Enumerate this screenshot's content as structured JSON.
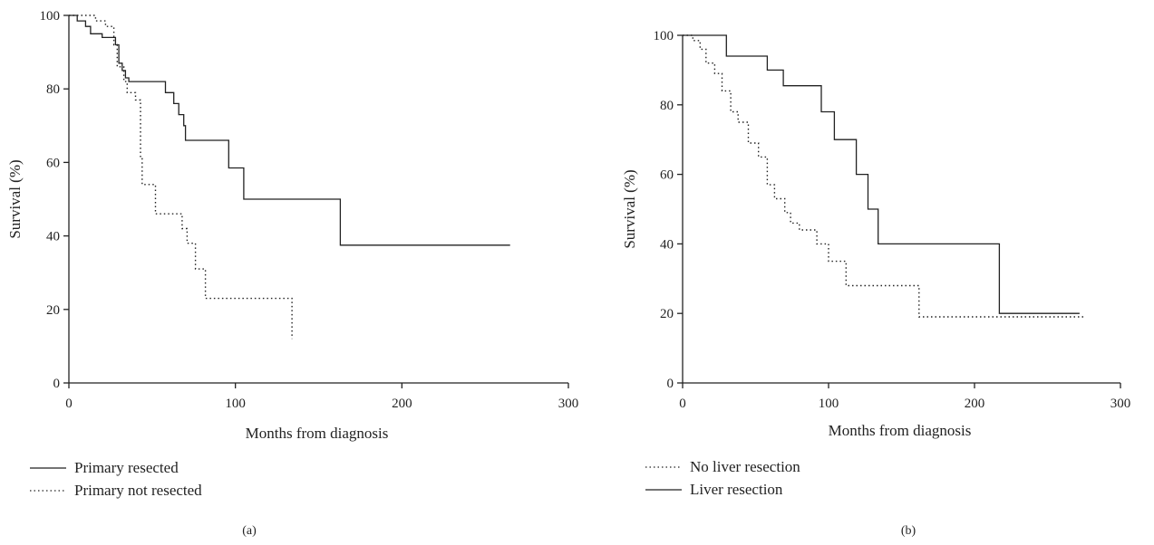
{
  "chart_data": [
    {
      "type": "line",
      "panel_label": "(a)",
      "xlabel": "Months from diagnosis",
      "ylabel": "Survival (%)",
      "xlim": [
        0,
        300
      ],
      "ylim": [
        0,
        100
      ],
      "xticks": [
        0,
        100,
        200,
        300
      ],
      "yticks": [
        0,
        20,
        40,
        60,
        80,
        100
      ],
      "grid": false,
      "legend_position": "bottom-left",
      "series": [
        {
          "name": "Primary resected",
          "style": "solid",
          "points": [
            [
              0,
              100
            ],
            [
              5,
              100
            ],
            [
              5,
              98.5
            ],
            [
              10,
              98.5
            ],
            [
              10,
              97
            ],
            [
              13,
              97
            ],
            [
              13,
              95
            ],
            [
              20,
              95
            ],
            [
              20,
              94
            ],
            [
              28,
              94
            ],
            [
              28,
              92
            ],
            [
              30,
              92
            ],
            [
              30,
              87
            ],
            [
              32,
              87
            ],
            [
              32,
              85
            ],
            [
              34,
              85
            ],
            [
              34,
              83
            ],
            [
              36,
              83
            ],
            [
              36,
              82
            ],
            [
              58,
              82
            ],
            [
              58,
              79
            ],
            [
              63,
              79
            ],
            [
              63,
              76
            ],
            [
              66,
              76
            ],
            [
              66,
              73
            ],
            [
              69,
              73
            ],
            [
              69,
              70
            ],
            [
              70,
              70
            ],
            [
              70,
              66
            ],
            [
              96,
              66
            ],
            [
              96,
              58.5
            ],
            [
              105,
              58.5
            ],
            [
              105,
              50
            ],
            [
              163,
              50
            ],
            [
              163,
              37.5
            ],
            [
              265,
              37.5
            ]
          ]
        },
        {
          "name": "Primary not resected",
          "style": "dotted",
          "points": [
            [
              0,
              100
            ],
            [
              16,
              100
            ],
            [
              16,
              98.5
            ],
            [
              22,
              98.5
            ],
            [
              22,
              97
            ],
            [
              27,
              97
            ],
            [
              27,
              92
            ],
            [
              29,
              92
            ],
            [
              29,
              86
            ],
            [
              33,
              86
            ],
            [
              33,
              82
            ],
            [
              35,
              82
            ],
            [
              35,
              79
            ],
            [
              40,
              79
            ],
            [
              40,
              77
            ],
            [
              43,
              77
            ],
            [
              43,
              61
            ],
            [
              44,
              61
            ],
            [
              44,
              54
            ],
            [
              52,
              54
            ],
            [
              52,
              46
            ],
            [
              68,
              46
            ],
            [
              68,
              42
            ],
            [
              71,
              42
            ],
            [
              71,
              38
            ],
            [
              76,
              38
            ],
            [
              76,
              31
            ],
            [
              82,
              31
            ],
            [
              82,
              23
            ],
            [
              134,
              23
            ],
            [
              134,
              12
            ]
          ]
        }
      ]
    },
    {
      "type": "line",
      "panel_label": "(b)",
      "xlabel": "Months from diagnosis",
      "ylabel": "Survival (%)",
      "xlim": [
        0,
        300
      ],
      "ylim": [
        0,
        100
      ],
      "xticks": [
        0,
        100,
        200,
        300
      ],
      "yticks": [
        0,
        20,
        40,
        60,
        80,
        100
      ],
      "grid": false,
      "legend_position": "bottom-left",
      "series": [
        {
          "name": "No liver resection",
          "style": "dotted",
          "points": [
            [
              0,
              100
            ],
            [
              7,
              100
            ],
            [
              7,
              98.5
            ],
            [
              12,
              98.5
            ],
            [
              12,
              96
            ],
            [
              16,
              96
            ],
            [
              16,
              92
            ],
            [
              22,
              92
            ],
            [
              22,
              89
            ],
            [
              27,
              89
            ],
            [
              27,
              84
            ],
            [
              33,
              84
            ],
            [
              33,
              78
            ],
            [
              38,
              78
            ],
            [
              38,
              75
            ],
            [
              45,
              75
            ],
            [
              45,
              69
            ],
            [
              52,
              69
            ],
            [
              52,
              65
            ],
            [
              58,
              65
            ],
            [
              58,
              57
            ],
            [
              63,
              57
            ],
            [
              63,
              53
            ],
            [
              70,
              53
            ],
            [
              70,
              49
            ],
            [
              74,
              49
            ],
            [
              74,
              46
            ],
            [
              80,
              46
            ],
            [
              80,
              44
            ],
            [
              92,
              44
            ],
            [
              92,
              40
            ],
            [
              100,
              40
            ],
            [
              100,
              35
            ],
            [
              112,
              35
            ],
            [
              112,
              28
            ],
            [
              162,
              28
            ],
            [
              162,
              19
            ],
            [
              275,
              19
            ]
          ]
        },
        {
          "name": "Liver resection",
          "style": "solid",
          "points": [
            [
              0,
              100
            ],
            [
              30,
              100
            ],
            [
              30,
              94
            ],
            [
              58,
              94
            ],
            [
              58,
              90
            ],
            [
              69,
              90
            ],
            [
              69,
              85.5
            ],
            [
              95,
              85.5
            ],
            [
              95,
              78
            ],
            [
              104,
              78
            ],
            [
              104,
              70
            ],
            [
              119,
              70
            ],
            [
              119,
              60
            ],
            [
              127,
              60
            ],
            [
              127,
              50
            ],
            [
              134,
              50
            ],
            [
              134,
              40
            ],
            [
              217,
              40
            ],
            [
              217,
              20
            ],
            [
              272,
              20
            ]
          ]
        }
      ]
    }
  ]
}
